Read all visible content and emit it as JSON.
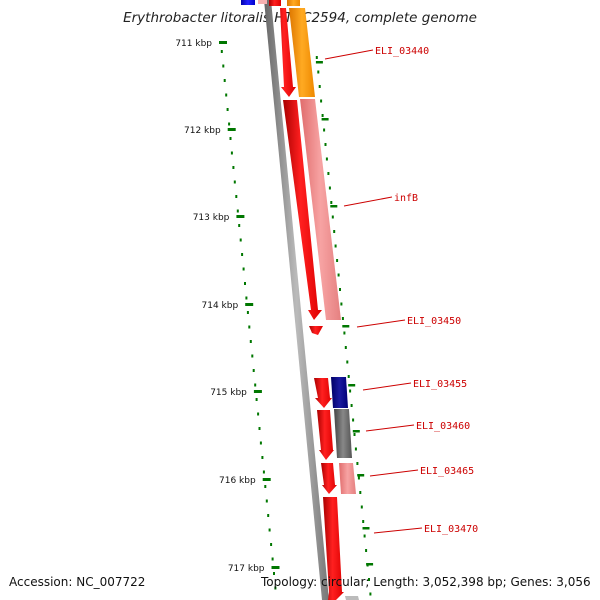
{
  "title": "Erythrobacter litoralis HTCC2594, complete genome",
  "accession": "Accession: NC_007722",
  "summary": "Topology: circular; Length: 3,052,398 bp; Genes: 3,056",
  "colors": {
    "backbone": "#888888",
    "gene_red": "#ff0000",
    "gene_pink": "#f08a8a",
    "gene_orange": "#ff9900",
    "gene_blue": "#0000cc",
    "gene_navy": "#000088",
    "gene_grey": "#666666",
    "tick": "#007700",
    "label": "#cc0000"
  },
  "ticks": [
    "711 kbp",
    "712 kbp",
    "713 kbp",
    "714 kbp",
    "715 kbp",
    "716 kbp",
    "717 kbp"
  ],
  "gene_labels": [
    "ELI_03440",
    "infB",
    "ELI_03450",
    "ELI_03455",
    "ELI_03460",
    "ELI_03465",
    "ELI_03470"
  ]
}
